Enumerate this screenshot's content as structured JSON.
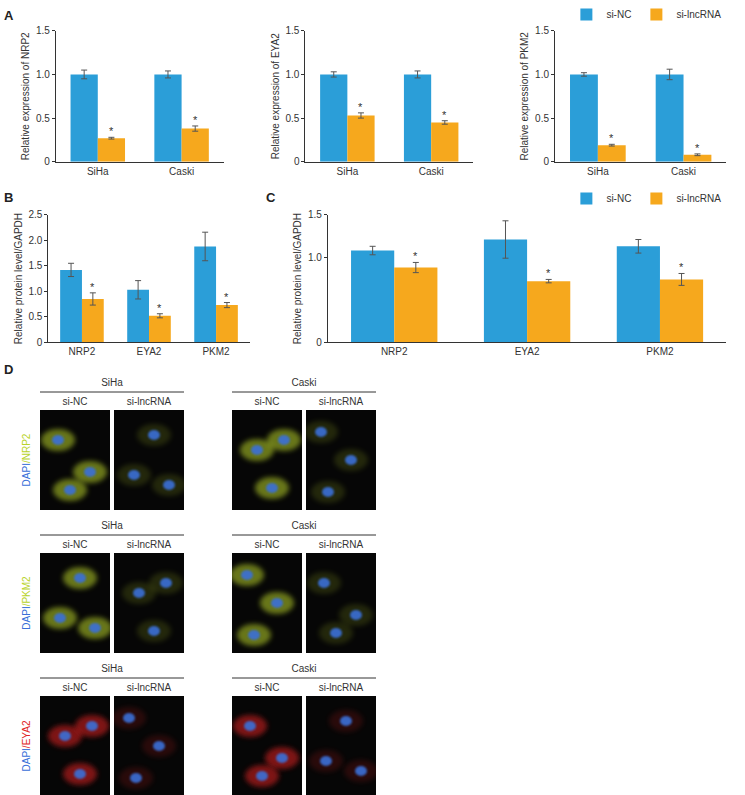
{
  "chart_data": [
    {
      "panel": "A",
      "type": "bar",
      "y_label": "Relative expression of NRP2",
      "categories": [
        "SiHa",
        "Caski"
      ],
      "series": [
        {
          "name": "si-NC",
          "color": "#2b9ed8",
          "values": [
            1.0,
            1.0
          ],
          "error": [
            0.05,
            0.04
          ]
        },
        {
          "name": "si-lncRNA",
          "color": "#f6a81d",
          "values": [
            0.27,
            0.38
          ],
          "error": [
            0.01,
            0.03
          ]
        }
      ],
      "ylim": [
        0,
        1.5
      ],
      "yticks": [
        0,
        0.5,
        {
          "value": 1,
          "label": "1.0"
        },
        1.5
      ],
      "annotations": [
        {
          "text": "*",
          "category": "SiHa",
          "series": "si-lncRNA"
        },
        {
          "text": "*",
          "category": "Caski",
          "series": "si-lncRNA"
        }
      ]
    },
    {
      "type": "bar",
      "y_label": "Relative expression of EYA2",
      "categories": [
        "SiHa",
        "Caski"
      ],
      "series": [
        {
          "name": "si-NC",
          "color": "#2b9ed8",
          "values": [
            1.0,
            1.0
          ],
          "error": [
            0.03,
            0.04
          ]
        },
        {
          "name": "si-lncRNA",
          "color": "#f6a81d",
          "values": [
            0.53,
            0.45
          ],
          "error": [
            0.03,
            0.02
          ]
        }
      ],
      "ylim": [
        0,
        1.5
      ],
      "yticks": [
        0,
        0.5,
        {
          "value": 1,
          "label": "1.0"
        },
        1.5
      ],
      "annotations": [
        {
          "text": "*",
          "category": "SiHa",
          "series": "si-lncRNA"
        },
        {
          "text": "*",
          "category": "Caski",
          "series": "si-lncRNA"
        }
      ]
    },
    {
      "type": "bar",
      "y_label": "Relative expression of PKM2",
      "legend": "top right",
      "categories": [
        "SiHa",
        "Caski"
      ],
      "series": [
        {
          "name": "si-NC",
          "color": "#2b9ed8",
          "values": [
            1.0,
            1.0
          ],
          "error": [
            0.02,
            0.06
          ]
        },
        {
          "name": "si-lncRNA",
          "color": "#f6a81d",
          "values": [
            0.19,
            0.08
          ],
          "error": [
            0.01,
            0.01
          ]
        }
      ],
      "ylim": [
        0,
        1.5
      ],
      "yticks": [
        0,
        0.5,
        {
          "value": 1,
          "label": "1.0"
        },
        1.5
      ],
      "annotations": [
        {
          "text": "*",
          "category": "SiHa",
          "series": "si-lncRNA"
        },
        {
          "text": "*",
          "category": "Caski",
          "series": "si-lncRNA"
        }
      ]
    },
    {
      "panel": "B",
      "type": "bar",
      "y_label": "Relative protein level/GAPDH",
      "categories": [
        "NRP2",
        "EYA2",
        "PKM2"
      ],
      "series": [
        {
          "name": "si-NC",
          "color": "#2b9ed8",
          "values": [
            1.42,
            1.03,
            1.88
          ],
          "error": [
            0.13,
            0.18,
            0.28
          ]
        },
        {
          "name": "si-lncRNA",
          "color": "#f6a81d",
          "values": [
            0.85,
            0.52,
            0.73
          ],
          "error": [
            0.12,
            0.04,
            0.05
          ]
        }
      ],
      "ylim": [
        0,
        2.5
      ],
      "yticks": [
        0,
        0.5,
        {
          "value": 1,
          "label": "1.0"
        },
        1.5,
        {
          "value": 2,
          "label": "2.0"
        },
        2.5
      ],
      "annotations": [
        {
          "text": "*",
          "category": "NRP2",
          "series": "si-lncRNA"
        },
        {
          "text": "*",
          "category": "EYA2",
          "series": "si-lncRNA"
        },
        {
          "text": "*",
          "category": "PKM2",
          "series": "si-lncRNA"
        }
      ]
    },
    {
      "panel": "C",
      "type": "bar",
      "y_label": "Relative protein level/GAPDH",
      "legend": "top right",
      "categories": [
        "NRP2",
        "EYA2",
        "PKM2"
      ],
      "series": [
        {
          "name": "si-NC",
          "color": "#2b9ed8",
          "values": [
            1.08,
            1.21,
            1.13
          ],
          "error": [
            0.05,
            0.22,
            0.08
          ]
        },
        {
          "name": "si-lncRNA",
          "color": "#f6a81d",
          "values": [
            0.88,
            0.72,
            0.74
          ],
          "error": [
            0.06,
            0.02,
            0.07
          ]
        }
      ],
      "ylim": [
        0,
        1.5
      ],
      "yticks": [
        0,
        {
          "value": 1,
          "label": "1.0"
        },
        1.5
      ],
      "annotations": [
        {
          "text": "*",
          "category": "NRP2",
          "series": "si-lncRNA"
        },
        {
          "text": "*",
          "category": "EYA2",
          "series": "si-lncRNA"
        },
        {
          "text": "*",
          "category": "PKM2",
          "series": "si-lncRNA"
        }
      ]
    }
  ],
  "image_panel": {
    "panel": "D",
    "stain": "DAPI",
    "stain_color": "#3a6fd8",
    "groups": [
      {
        "name": "SiHa",
        "conditions": [
          "si-NC",
          "si-lncRNA"
        ]
      },
      {
        "name": "Caski",
        "conditions": [
          "si-NC",
          "si-lncRNA"
        ]
      }
    ],
    "rows": [
      {
        "marker": "NRP2",
        "color": "#b9d32a"
      },
      {
        "marker": "PKM2",
        "color": "#b9d32a"
      },
      {
        "marker": "EYA2",
        "color": "#e02424"
      }
    ]
  }
}
